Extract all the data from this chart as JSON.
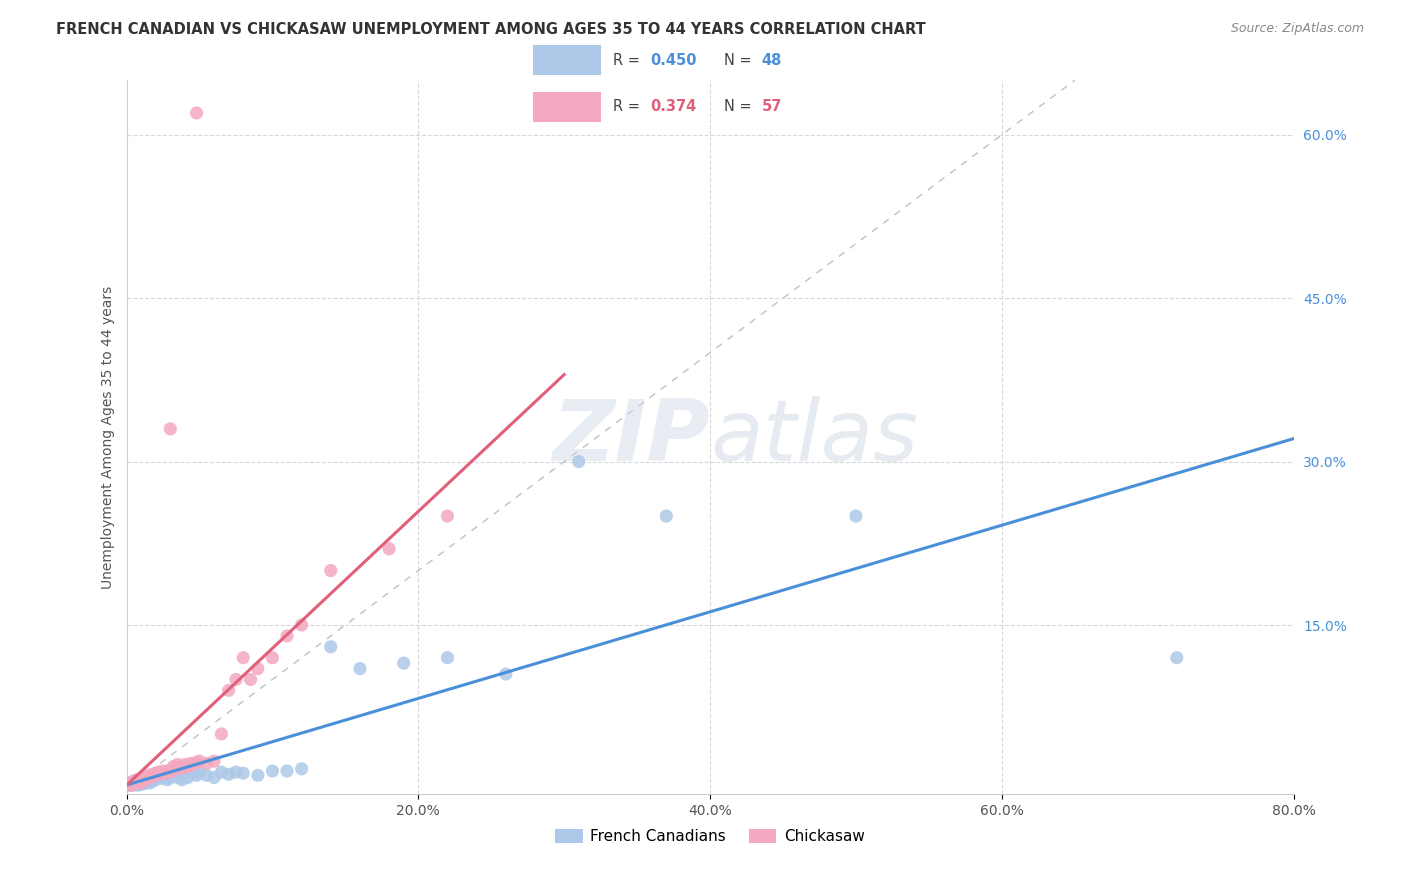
{
  "title": "FRENCH CANADIAN VS CHICKASAW UNEMPLOYMENT AMONG AGES 35 TO 44 YEARS CORRELATION CHART",
  "source": "Source: ZipAtlas.com",
  "ylabel": "Unemployment Among Ages 35 to 44 years",
  "xlim": [
    0,
    0.8
  ],
  "ylim": [
    -0.005,
    0.65
  ],
  "blue_color": "#adc8e8",
  "pink_color": "#f4a8c0",
  "blue_line_color": "#4a90d9",
  "pink_line_color": "#e0607a",
  "diag_line_color": "#c0c0c0",
  "grid_color": "#d8d8d8",
  "legend_french": "French Canadians",
  "legend_chickasaw": "Chickasaw",
  "R_blue": 0.45,
  "N_blue": 48,
  "R_pink": 0.374,
  "N_pink": 57,
  "blue_x": [
    0.002,
    0.003,
    0.004,
    0.005,
    0.006,
    0.007,
    0.008,
    0.009,
    0.01,
    0.011,
    0.012,
    0.013,
    0.014,
    0.015,
    0.016,
    0.018,
    0.02,
    0.022,
    0.025,
    0.028,
    0.03,
    0.032,
    0.035,
    0.038,
    0.04,
    0.042,
    0.045,
    0.048,
    0.05,
    0.055,
    0.06,
    0.065,
    0.07,
    0.075,
    0.08,
    0.09,
    0.1,
    0.11,
    0.12,
    0.14,
    0.16,
    0.19,
    0.22,
    0.26,
    0.31,
    0.37,
    0.72,
    0.5
  ],
  "blue_y": [
    0.005,
    0.003,
    0.004,
    0.003,
    0.006,
    0.004,
    0.003,
    0.005,
    0.006,
    0.004,
    0.007,
    0.005,
    0.006,
    0.008,
    0.005,
    0.007,
    0.008,
    0.01,
    0.009,
    0.008,
    0.01,
    0.012,
    0.01,
    0.008,
    0.012,
    0.01,
    0.014,
    0.012,
    0.015,
    0.012,
    0.01,
    0.015,
    0.013,
    0.015,
    0.014,
    0.012,
    0.016,
    0.016,
    0.018,
    0.13,
    0.11,
    0.115,
    0.12,
    0.105,
    0.3,
    0.25,
    0.12,
    0.25
  ],
  "pink_x": [
    0.001,
    0.002,
    0.003,
    0.004,
    0.005,
    0.005,
    0.006,
    0.007,
    0.007,
    0.008,
    0.009,
    0.01,
    0.01,
    0.011,
    0.012,
    0.013,
    0.014,
    0.015,
    0.016,
    0.017,
    0.018,
    0.019,
    0.02,
    0.021,
    0.022,
    0.023,
    0.025,
    0.027,
    0.028,
    0.03,
    0.032,
    0.033,
    0.035,
    0.037,
    0.038,
    0.04,
    0.042,
    0.044,
    0.046,
    0.048,
    0.05,
    0.055,
    0.06,
    0.065,
    0.07,
    0.075,
    0.08,
    0.085,
    0.09,
    0.1,
    0.11,
    0.12,
    0.14,
    0.18,
    0.22,
    0.048,
    0.03
  ],
  "pink_y": [
    0.003,
    0.004,
    0.003,
    0.005,
    0.004,
    0.007,
    0.005,
    0.006,
    0.008,
    0.006,
    0.007,
    0.005,
    0.008,
    0.007,
    0.01,
    0.008,
    0.009,
    0.012,
    0.01,
    0.011,
    0.013,
    0.012,
    0.014,
    0.013,
    0.015,
    0.013,
    0.016,
    0.014,
    0.016,
    0.015,
    0.02,
    0.018,
    0.022,
    0.018,
    0.02,
    0.022,
    0.02,
    0.023,
    0.022,
    0.024,
    0.025,
    0.023,
    0.025,
    0.05,
    0.09,
    0.1,
    0.12,
    0.1,
    0.11,
    0.12,
    0.14,
    0.15,
    0.2,
    0.22,
    0.25,
    0.62,
    0.33
  ]
}
